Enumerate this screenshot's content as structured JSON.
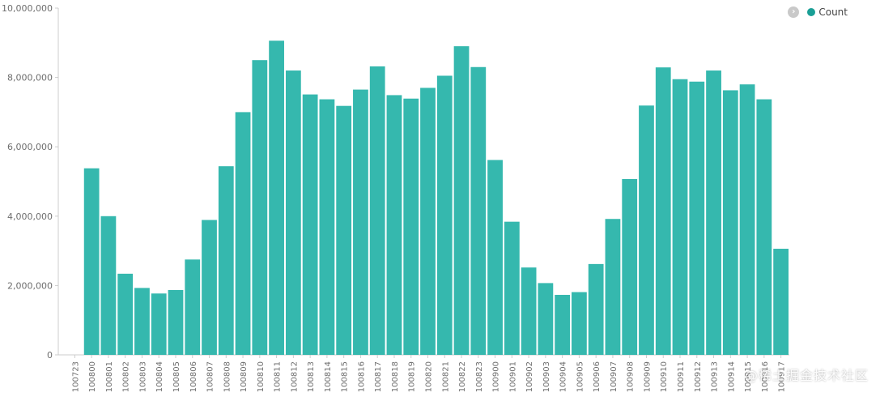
{
  "colors": {
    "bar": "#35b8ae",
    "legend_dot": "#1a9f96",
    "axis": "#cccccc",
    "tick_text": "#6e6e6e"
  },
  "legend": {
    "toggle_icon": "chevron-right-icon",
    "items": [
      {
        "label": "Count"
      }
    ]
  },
  "watermark": "@稀土掘金技术社区",
  "chart_data": {
    "type": "bar",
    "title": "",
    "xlabel": "",
    "ylabel": "",
    "ylim": [
      0,
      10000000
    ],
    "yticks": [
      "0",
      "2,000,000",
      "4,000,000",
      "6,000,000",
      "8,000,000",
      "10,000,000"
    ],
    "ytick_values": [
      0,
      2000000,
      4000000,
      6000000,
      8000000,
      10000000
    ],
    "grid": false,
    "legend_position": "top-right",
    "categories": [
      "100723",
      "100800",
      "100801",
      "100802",
      "100803",
      "100804",
      "100805",
      "100806",
      "100807",
      "100808",
      "100809",
      "100810",
      "100811",
      "100812",
      "100813",
      "100814",
      "100815",
      "100816",
      "100817",
      "100818",
      "100819",
      "100820",
      "100821",
      "100822",
      "100823",
      "100900",
      "100901",
      "100902",
      "100903",
      "100904",
      "100905",
      "100906",
      "100907",
      "100908",
      "100909",
      "100910",
      "100911",
      "100912",
      "100913",
      "100914",
      "100915",
      "100916",
      "100917"
    ],
    "series": [
      {
        "name": "Count",
        "values": [
          null,
          5380000,
          4000000,
          2340000,
          1930000,
          1770000,
          1870000,
          2750000,
          3890000,
          5440000,
          7000000,
          8500000,
          9060000,
          8200000,
          7510000,
          7370000,
          7180000,
          7650000,
          8320000,
          7490000,
          7390000,
          7700000,
          8050000,
          8900000,
          8300000,
          5620000,
          3840000,
          2520000,
          2070000,
          1730000,
          1810000,
          2620000,
          3920000,
          5070000,
          7190000,
          8290000,
          7950000,
          7880000,
          8200000,
          7630000,
          7800000,
          7370000,
          3060000
        ]
      }
    ]
  }
}
